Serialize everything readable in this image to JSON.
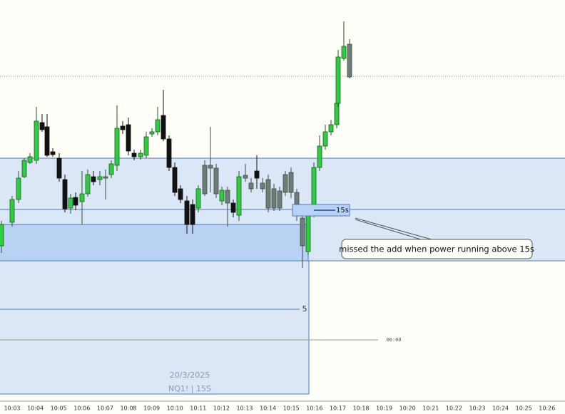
{
  "time_axis": {
    "labels": [
      "10:03",
      "10:04",
      "10:05",
      "10:06",
      "10:07",
      "10:08",
      "10:09",
      "10:10",
      "10:11",
      "10:12",
      "10:13",
      "10:14",
      "10:15",
      "10:16",
      "10:17",
      "10:18",
      "10:19",
      "10:20",
      "10:21",
      "10:22",
      "10:23",
      "10:24",
      "10:25",
      "10:26"
    ]
  },
  "box_label": "15s",
  "annotation": "missed the add when power running above 15s",
  "level_label": "5",
  "session_time": "06:00",
  "watermark": {
    "date": "20/3/2025",
    "symbol": "NQ1! | 15S"
  }
}
